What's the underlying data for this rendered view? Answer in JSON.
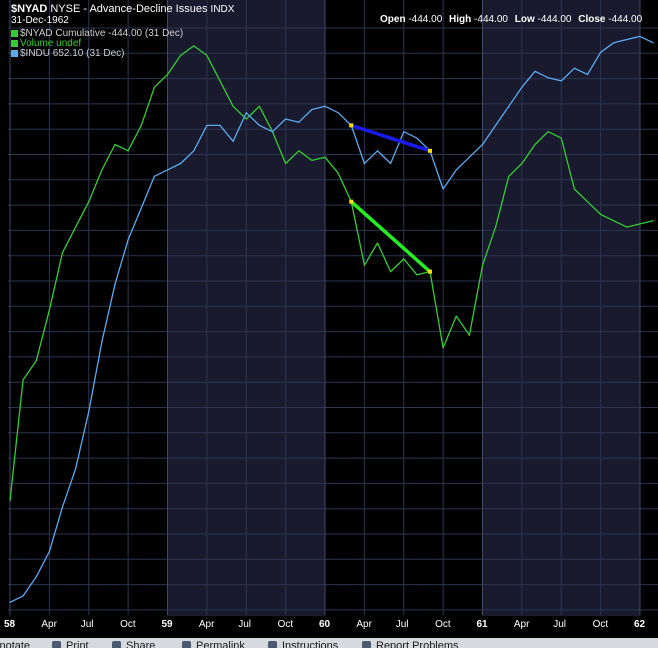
{
  "header": {
    "symbol": "$NYAD",
    "exchange_title": "NYSE - Advance-Decline Issues",
    "index_tag": "INDX",
    "date": "31-Dec-1962",
    "open_label": "Open",
    "open_value": "-444.00",
    "high_label": "High",
    "high_value": "-444.00",
    "low_label": "Low",
    "low_value": "-444.00",
    "close_label": "Close",
    "close_value": "-444.00"
  },
  "legend": [
    {
      "text": "$NYAD Cumulative -444.00 (31 Dec)",
      "color": "#33cc33"
    },
    {
      "text": "Volume undef",
      "color": "#33cc33"
    },
    {
      "text": "$INDU 652.10 (31 Dec)",
      "color": "#5aaaf0"
    }
  ],
  "bottom_bar": {
    "items": [
      "Annotate",
      "Print",
      "Share",
      "Permalink",
      "Instructions",
      "Report Problems"
    ]
  },
  "chart_data": {
    "type": "line",
    "x_ticks": [
      {
        "date": "1958-01",
        "label": "58",
        "year": true
      },
      {
        "date": "1958-04",
        "label": "Apr",
        "year": false
      },
      {
        "date": "1958-07",
        "label": "Jul",
        "year": false
      },
      {
        "date": "1958-10",
        "label": "Oct",
        "year": false
      },
      {
        "date": "1959-01",
        "label": "59",
        "year": true
      },
      {
        "date": "1959-04",
        "label": "Apr",
        "year": false
      },
      {
        "date": "1959-07",
        "label": "Jul",
        "year": false
      },
      {
        "date": "1959-10",
        "label": "Oct",
        "year": false
      },
      {
        "date": "1960-01",
        "label": "60",
        "year": true
      },
      {
        "date": "1960-04",
        "label": "Apr",
        "year": false
      },
      {
        "date": "1960-07",
        "label": "Jul",
        "year": false
      },
      {
        "date": "1960-10",
        "label": "Oct",
        "year": false
      },
      {
        "date": "1961-01",
        "label": "61",
        "year": true
      },
      {
        "date": "1961-04",
        "label": "Apr",
        "year": false
      },
      {
        "date": "1961-07",
        "label": "Jul",
        "year": false
      },
      {
        "date": "1961-10",
        "label": "Oct",
        "year": false
      },
      {
        "date": "1962-01",
        "label": "62",
        "year": true
      }
    ],
    "series": [
      {
        "name": "$NYAD Cumulative",
        "color": "#33cc33",
        "x": [
          "1958-01",
          "1958-02",
          "1958-03",
          "1958-04",
          "1958-05",
          "1958-06",
          "1958-07",
          "1958-08",
          "1958-09",
          "1958-10",
          "1958-11",
          "1958-12",
          "1959-01",
          "1959-02",
          "1959-03",
          "1959-04",
          "1959-05",
          "1959-06",
          "1959-07",
          "1959-08",
          "1959-09",
          "1959-10",
          "1959-11",
          "1959-12",
          "1960-01",
          "1960-02",
          "1960-03",
          "1960-04",
          "1960-05",
          "1960-06",
          "1960-07",
          "1960-08",
          "1960-09",
          "1960-10",
          "1960-11",
          "1960-12",
          "1961-01",
          "1961-02",
          "1961-03",
          "1961-04",
          "1961-05",
          "1961-06",
          "1961-07",
          "1961-08",
          "1961-09",
          "1961-10",
          "1961-11",
          "1961-12",
          "1962-01",
          "1962-02"
        ],
        "values": [
          -320,
          -130,
          -100,
          -20,
          70,
          110,
          150,
          200,
          240,
          230,
          270,
          330,
          350,
          380,
          395,
          380,
          340,
          300,
          280,
          300,
          260,
          210,
          230,
          215,
          220,
          195,
          150,
          50,
          85,
          40,
          60,
          35,
          40,
          -80,
          -30,
          -60,
          50,
          110,
          190,
          210,
          240,
          260,
          250,
          170,
          150,
          130,
          120,
          110,
          115,
          120
        ]
      },
      {
        "name": "$INDU",
        "color": "#5aaaf0",
        "x": [
          "1958-01",
          "1958-02",
          "1958-03",
          "1958-04",
          "1958-05",
          "1958-06",
          "1958-07",
          "1958-08",
          "1958-09",
          "1958-10",
          "1958-11",
          "1958-12",
          "1959-01",
          "1959-02",
          "1959-03",
          "1959-04",
          "1959-05",
          "1959-06",
          "1959-07",
          "1959-08",
          "1959-09",
          "1959-10",
          "1959-11",
          "1959-12",
          "1960-01",
          "1960-02",
          "1960-03",
          "1960-04",
          "1960-05",
          "1960-06",
          "1960-07",
          "1960-08",
          "1960-09",
          "1960-10",
          "1960-11",
          "1960-12",
          "1961-01",
          "1961-02",
          "1961-03",
          "1961-04",
          "1961-05",
          "1961-06",
          "1961-07",
          "1961-08",
          "1961-09",
          "1961-10",
          "1961-11",
          "1961-12",
          "1962-01",
          "1962-02"
        ],
        "values": [
          -480,
          -470,
          -440,
          -400,
          -330,
          -270,
          -180,
          -70,
          20,
          90,
          140,
          190,
          200,
          210,
          230,
          270,
          270,
          245,
          290,
          270,
          260,
          280,
          275,
          295,
          300,
          290,
          270,
          210,
          230,
          210,
          260,
          250,
          230,
          170,
          200,
          220,
          240,
          270,
          300,
          330,
          355,
          345,
          340,
          360,
          350,
          385,
          400,
          405,
          410,
          400
        ]
      }
    ],
    "annotations": [
      {
        "type": "trendline",
        "color": "#1a1aee",
        "from": {
          "x": "1960-03",
          "series": "$INDU"
        },
        "to": {
          "x": "1960-09",
          "series": "$INDU"
        }
      },
      {
        "type": "trendline",
        "color": "#22ee22",
        "from": {
          "x": "1960-03",
          "series": "$NYAD Cumulative"
        },
        "to": {
          "x": "1960-09",
          "series": "$NYAD Cumulative"
        }
      }
    ],
    "grid": true
  }
}
